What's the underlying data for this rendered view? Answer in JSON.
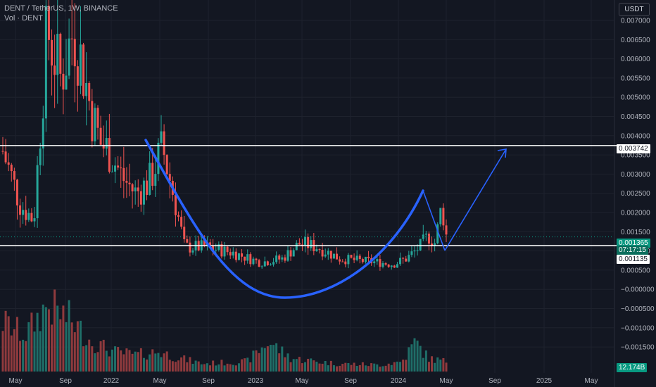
{
  "legend": {
    "symbol": "DENT / TetherUS, 1W, BINANCE",
    "volume": "Vol · DENT"
  },
  "currency_button": "USDT",
  "badges": {
    "resistance": "0.003742",
    "last_price": "0.001365",
    "countdown": "07:17:15",
    "support": "0.001135",
    "volume": "12.174B"
  },
  "colors": {
    "background": "#131722",
    "up": "#26a69a",
    "down": "#ef5350",
    "volume_up": "#1f6e68",
    "volume_down": "#8f3a3d",
    "grid": "#1e222d",
    "drawing": "#2962ff",
    "level_line": "#ffffff",
    "last_price": "#089981"
  },
  "chart_data": {
    "type": "candlestick",
    "title": "DENT / TetherUS, 1W, BINANCE",
    "x_ticks": [
      "May",
      "Sep",
      "2022",
      "May",
      "Sep",
      "2023",
      "May",
      "Sep",
      "2024",
      "May",
      "Sep",
      "2025",
      "May"
    ],
    "y_ticks": [
      "0.007000",
      "0.006500",
      "0.006000",
      "0.005500",
      "0.005000",
      "0.004500",
      "0.004000",
      "0.003500",
      "0.003000",
      "0.002500",
      "0.002000",
      "0.001500",
      "0.001000",
      "0.000500",
      "−0.000000",
      "−0.000500",
      "−0.001000",
      "−0.001500"
    ],
    "y_range": [
      -0.00185,
      0.0075
    ],
    "horizontal_levels": [
      0.003742,
      0.001135
    ],
    "last_price": 0.001365,
    "grid": true,
    "price_path": [
      {
        "t": 0.0,
        "p": 0.0036
      },
      {
        "t": 0.04,
        "p": 0.0022
      },
      {
        "t": 0.07,
        "p": 0.0018
      },
      {
        "t": 0.1,
        "p": 0.0068
      },
      {
        "t": 0.13,
        "p": 0.0055
      },
      {
        "t": 0.16,
        "p": 0.0068
      },
      {
        "t": 0.18,
        "p": 0.0058
      },
      {
        "t": 0.2,
        "p": 0.0046
      },
      {
        "t": 0.22,
        "p": 0.0038
      },
      {
        "t": 0.24,
        "p": 0.0036
      },
      {
        "t": 0.27,
        "p": 0.0029
      },
      {
        "t": 0.3,
        "p": 0.0025
      },
      {
        "t": 0.33,
        "p": 0.0028
      },
      {
        "t": 0.36,
        "p": 0.0037
      },
      {
        "t": 0.39,
        "p": 0.0022
      },
      {
        "t": 0.41,
        "p": 0.0011
      },
      {
        "t": 0.46,
        "p": 0.0011
      },
      {
        "t": 0.52,
        "p": 0.00095
      },
      {
        "t": 0.58,
        "p": 0.0007
      },
      {
        "t": 0.63,
        "p": 0.0008
      },
      {
        "t": 0.67,
        "p": 0.0012
      },
      {
        "t": 0.71,
        "p": 0.0011
      },
      {
        "t": 0.76,
        "p": 0.0008
      },
      {
        "t": 0.8,
        "p": 0.00075
      },
      {
        "t": 0.85,
        "p": 0.0007
      },
      {
        "t": 0.88,
        "p": 0.00065
      },
      {
        "t": 0.91,
        "p": 0.0008
      },
      {
        "t": 0.94,
        "p": 0.0011
      },
      {
        "t": 0.96,
        "p": 0.0014
      },
      {
        "t": 0.975,
        "p": 0.0012
      },
      {
        "t": 0.99,
        "p": 0.0022
      },
      {
        "t": 1.0,
        "p": 0.0014
      }
    ],
    "volume_profile": [
      {
        "t": 0.0,
        "v": 0.75
      },
      {
        "t": 0.05,
        "v": 0.55
      },
      {
        "t": 0.1,
        "v": 1.0
      },
      {
        "t": 0.15,
        "v": 0.8
      },
      {
        "t": 0.2,
        "v": 0.45
      },
      {
        "t": 0.25,
        "v": 0.3
      },
      {
        "t": 0.3,
        "v": 0.25
      },
      {
        "t": 0.35,
        "v": 0.3
      },
      {
        "t": 0.4,
        "v": 0.2
      },
      {
        "t": 0.45,
        "v": 0.12
      },
      {
        "t": 0.55,
        "v": 0.15
      },
      {
        "t": 0.6,
        "v": 0.45
      },
      {
        "t": 0.65,
        "v": 0.2
      },
      {
        "t": 0.75,
        "v": 0.12
      },
      {
        "t": 0.85,
        "v": 0.1
      },
      {
        "t": 0.9,
        "v": 0.15
      },
      {
        "t": 0.93,
        "v": 0.45
      },
      {
        "t": 0.96,
        "v": 0.2
      },
      {
        "t": 1.0,
        "v": 0.15
      }
    ]
  }
}
